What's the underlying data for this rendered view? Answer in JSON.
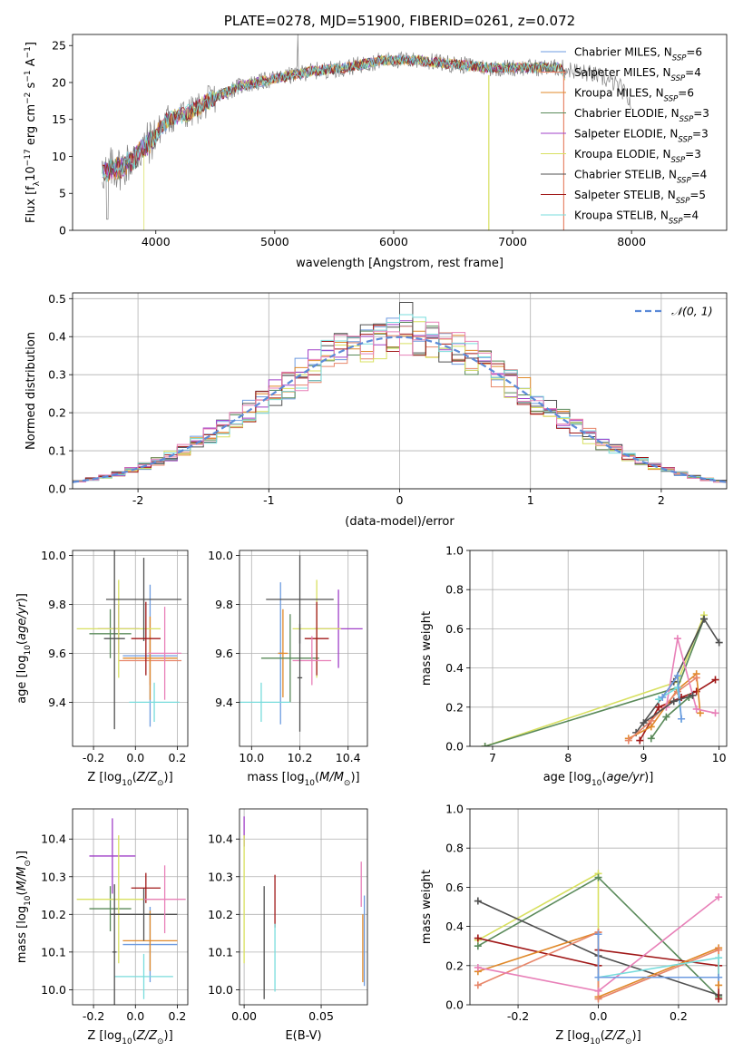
{
  "colors": {
    "chabrier_miles": "#6d9be0",
    "salpeter_miles": "#e8866a",
    "kroupa_miles": "#e0892a",
    "chabrier_elodie": "#5a8a5a",
    "salpeter_elodie": "#a040c8",
    "kroupa_elodie": "#d8e060",
    "chabrier_stelib": "#505050",
    "salpeter_stelib": "#a01818",
    "kroupa_stelib": "#78dcdc",
    "pink": "#e880b8",
    "gaussian": "#5b8ad8"
  },
  "chart_data": [
    {
      "id": "spectrum",
      "type": "line",
      "title": "PLATE=0278, MJD=51900, FIBERID=0261, z=0.072",
      "xlabel": "wavelength [Angstrom, rest frame]",
      "ylabel": "Flux [f_λ 10^-17 erg cm^-2 s^-1 A^-1]",
      "xlim": [
        3300,
        8800
      ],
      "ylim": [
        0,
        26.5
      ],
      "xticks": [
        4000,
        5000,
        6000,
        7000,
        8000
      ],
      "yticks": [
        0,
        5,
        10,
        15,
        20,
        25
      ],
      "grid": false,
      "legend_position": "upper-right",
      "legend": [
        {
          "label": "Chabrier MILES, N",
          "sub": "SSP",
          "tail": "=6",
          "color": "chabrier_miles"
        },
        {
          "label": "Salpeter MILES, N",
          "sub": "SSP",
          "tail": "=4",
          "color": "salpeter_miles"
        },
        {
          "label": "Kroupa MILES, N",
          "sub": "SSP",
          "tail": "=6",
          "color": "kroupa_miles"
        },
        {
          "label": "Chabrier ELODIE, N",
          "sub": "SSP",
          "tail": "=3",
          "color": "chabrier_elodie"
        },
        {
          "label": "Salpeter ELODIE, N",
          "sub": "SSP",
          "tail": "=3",
          "color": "salpeter_elodie"
        },
        {
          "label": "Kroupa ELODIE, N",
          "sub": "SSP",
          "tail": "=3",
          "color": "kroupa_elodie"
        },
        {
          "label": "Chabrier STELIB, N",
          "sub": "SSP",
          "tail": "=4",
          "color": "chabrier_stelib"
        },
        {
          "label": "Salpeter STELIB, N",
          "sub": "SSP",
          "tail": "=5",
          "color": "salpeter_stelib"
        },
        {
          "label": "Kroupa STELIB, N",
          "sub": "SSP",
          "tail": "=4",
          "color": "kroupa_stelib"
        }
      ],
      "data_anchors": [
        [
          3550,
          8
        ],
        [
          3700,
          8.5
        ],
        [
          3800,
          9.5
        ],
        [
          3950,
          12
        ],
        [
          4100,
          15
        ],
        [
          4300,
          16
        ],
        [
          4500,
          18
        ],
        [
          4700,
          19.5
        ],
        [
          5000,
          20.5
        ],
        [
          5300,
          21.5
        ],
        [
          5600,
          22
        ],
        [
          5900,
          23
        ],
        [
          6200,
          23
        ],
        [
          6500,
          22.5
        ],
        [
          6800,
          22
        ],
        [
          7100,
          22
        ],
        [
          7400,
          22
        ],
        [
          7700,
          21
        ],
        [
          7900,
          19.5
        ],
        [
          8000,
          17
        ]
      ],
      "model_anchors": [
        [
          3550,
          8
        ],
        [
          3700,
          8.5
        ],
        [
          3800,
          9.5
        ],
        [
          3950,
          12
        ],
        [
          4100,
          15
        ],
        [
          4300,
          16
        ],
        [
          4500,
          18
        ],
        [
          4700,
          19.5
        ],
        [
          5000,
          20.5
        ],
        [
          5300,
          21.5
        ],
        [
          5600,
          22
        ],
        [
          5900,
          23
        ],
        [
          6200,
          23
        ],
        [
          6500,
          22.5
        ],
        [
          6800,
          22
        ],
        [
          7100,
          22
        ],
        [
          7400,
          22
        ],
        [
          7440,
          21
        ]
      ],
      "model_xmin": [
        3550,
        3550,
        3550,
        3550,
        3550,
        3900,
        3550,
        3550,
        3550
      ]
    },
    {
      "id": "residuals",
      "type": "histogram",
      "xlabel": "(data-model)/error",
      "ylabel": "Normed distribution",
      "xlim": [
        -2.5,
        2.5
      ],
      "ylim": [
        0,
        0.515
      ],
      "xticks": [
        -2,
        -1,
        0,
        1,
        2
      ],
      "yticks": [
        0.0,
        0.1,
        0.2,
        0.3,
        0.4,
        0.5
      ],
      "grid": true,
      "legend_position": "upper-right",
      "legend_label": "𝒩(0, 1)",
      "bin_width": 0.1,
      "bin_start": -2.5,
      "series_colors": [
        "chabrier_miles",
        "salpeter_miles",
        "kroupa_miles",
        "chabrier_elodie",
        "salpeter_elodie",
        "kroupa_elodie",
        "chabrier_stelib",
        "salpeter_stelib",
        "kroupa_stelib",
        "pink"
      ]
    },
    {
      "id": "age_vs_Z",
      "type": "errorbar",
      "xlabel": "Z [log10(Z/Z⊙)]",
      "ylabel": "age  [log10(age/yr)]",
      "xlim": [
        -0.3,
        0.25
      ],
      "ylim": [
        9.22,
        10.02
      ],
      "xticks": [
        -0.2,
        0.0,
        0.2
      ],
      "yticks": [
        9.4,
        9.6,
        9.8,
        10.0
      ],
      "grid": true,
      "points": [
        {
          "x": 0.07,
          "y": 9.59,
          "xerr": 0.13,
          "yerr": 0.29,
          "color": "chabrier_miles"
        },
        {
          "x": 0.07,
          "y": 9.57,
          "xerr": 0.15,
          "yerr": 0.1,
          "color": "salpeter_miles"
        },
        {
          "x": 0.07,
          "y": 9.58,
          "xerr": 0.13,
          "yerr": 0.17,
          "color": "kroupa_miles"
        },
        {
          "x": -0.12,
          "y": 9.68,
          "xerr": 0.1,
          "yerr": 0.1,
          "color": "chabrier_elodie"
        },
        {
          "x": -0.08,
          "y": 9.7,
          "xerr": 0.1,
          "yerr": 0.1,
          "color": "salpeter_elodie"
        },
        {
          "x": -0.08,
          "y": 9.7,
          "xerr": 0.2,
          "yerr": 0.2,
          "color": "kroupa_elodie"
        },
        {
          "x": 0.04,
          "y": 9.82,
          "xerr": 0.18,
          "yerr": 0.17,
          "color": "chabrier_stelib"
        },
        {
          "x": 0.05,
          "y": 9.66,
          "xerr": 0.07,
          "yerr": 0.15,
          "color": "salpeter_stelib"
        },
        {
          "x": 0.09,
          "y": 9.4,
          "xerr": 0.12,
          "yerr": 0.08,
          "color": "kroupa_stelib"
        },
        {
          "x": 0.14,
          "y": 9.6,
          "xerr": 0.08,
          "yerr": 0.19,
          "color": "pink"
        },
        {
          "x": -0.1,
          "y": 9.66,
          "xerr": 0.05,
          "yerr": 0.37,
          "color": "chabrier_stelib"
        }
      ]
    },
    {
      "id": "age_vs_mass",
      "type": "errorbar",
      "xlabel": "mass [log10(M/M⊙)]",
      "ylabel": "",
      "xlim": [
        9.95,
        10.48
      ],
      "ylim": [
        9.22,
        10.02
      ],
      "xticks": [
        10.0,
        10.2,
        10.4
      ],
      "yticks": [
        9.4,
        9.6,
        9.8,
        10.0
      ],
      "grid": true,
      "points": [
        {
          "x": 10.12,
          "y": 9.6,
          "xerr": 0.01,
          "yerr": 0.29,
          "color": "chabrier_miles"
        },
        {
          "x": 10.13,
          "y": 9.6,
          "xerr": 0.02,
          "yerr": 0.18,
          "color": "kroupa_miles"
        },
        {
          "x": 10.16,
          "y": 9.58,
          "xerr": 0.12,
          "yerr": 0.18,
          "color": "chabrier_elodie"
        },
        {
          "x": 10.36,
          "y": 9.7,
          "xerr": 0.1,
          "yerr": 0.16,
          "color": "salpeter_elodie"
        },
        {
          "x": 10.27,
          "y": 9.7,
          "xerr": 0.1,
          "yerr": 0.2,
          "color": "kroupa_elodie"
        },
        {
          "x": 10.2,
          "y": 9.82,
          "xerr": 0.14,
          "yerr": 0.18,
          "color": "chabrier_stelib"
        },
        {
          "x": 10.27,
          "y": 9.66,
          "xerr": 0.05,
          "yerr": 0.15,
          "color": "salpeter_stelib"
        },
        {
          "x": 10.04,
          "y": 9.4,
          "xerr": 0.12,
          "yerr": 0.08,
          "color": "kroupa_stelib"
        },
        {
          "x": 10.25,
          "y": 9.57,
          "xerr": 0.08,
          "yerr": 0.1,
          "color": "pink"
        },
        {
          "x": 10.2,
          "y": 9.5,
          "xerr": 0.01,
          "yerr": 0.22,
          "color": "chabrier_stelib"
        }
      ]
    },
    {
      "id": "weight_vs_age",
      "type": "line",
      "xlabel": "age  [log10(age/yr)]",
      "ylabel": "mass weight",
      "xlim": [
        6.7,
        10.1
      ],
      "ylim": [
        0,
        1
      ],
      "xticks": [
        7,
        8,
        9,
        10
      ],
      "yticks": [
        0.0,
        0.2,
        0.4,
        0.6,
        0.8,
        1.0
      ],
      "grid": true,
      "series": [
        {
          "color": "kroupa_elodie",
          "x": [
            6.9,
            9.45,
            9.8
          ],
          "y": [
            0.0,
            0.33,
            0.67
          ]
        },
        {
          "color": "chabrier_elodie",
          "x": [
            6.9,
            9.45,
            9.8
          ],
          "y": [
            0.0,
            0.3,
            0.65
          ]
        },
        {
          "color": "chabrier_stelib",
          "x": [
            8.9,
            9.4,
            9.8,
            10.0
          ],
          "y": [
            0.07,
            0.33,
            0.65,
            0.53
          ]
        },
        {
          "color": "salpeter_stelib",
          "x": [
            8.95,
            9.2,
            9.5,
            9.7,
            9.95
          ],
          "y": [
            0.03,
            0.2,
            0.25,
            0.28,
            0.34
          ]
        },
        {
          "color": "kroupa_miles",
          "x": [
            8.8,
            9.1,
            9.45,
            9.7,
            9.75
          ],
          "y": [
            0.04,
            0.1,
            0.29,
            0.37,
            0.17
          ]
        },
        {
          "color": "salpeter_miles",
          "x": [
            8.8,
            9.1,
            9.45,
            9.7
          ],
          "y": [
            0.03,
            0.13,
            0.28,
            0.35
          ]
        },
        {
          "color": "pink",
          "x": [
            9.3,
            9.45,
            9.7,
            9.95
          ],
          "y": [
            0.2,
            0.55,
            0.19,
            0.17
          ]
        },
        {
          "color": "kroupa_stelib",
          "x": [
            9.2,
            9.45,
            9.5
          ],
          "y": [
            0.24,
            0.3,
            0.14
          ]
        },
        {
          "color": "chabrier_miles",
          "x": [
            9.25,
            9.45,
            9.5
          ],
          "y": [
            0.25,
            0.36,
            0.14
          ]
        },
        {
          "color": "chabrier_elodie",
          "x": [
            9.1,
            9.3,
            9.6
          ],
          "y": [
            0.04,
            0.15,
            0.25
          ]
        },
        {
          "color": "chabrier_stelib",
          "x": [
            9.0,
            9.4,
            9.65
          ],
          "y": [
            0.12,
            0.23,
            0.26
          ]
        }
      ]
    },
    {
      "id": "mass_vs_Z",
      "type": "errorbar",
      "xlabel": "Z [log10(Z/Z⊙)]",
      "ylabel": "mass [log10(M/M⊙)]",
      "xlim": [
        -0.3,
        0.25
      ],
      "ylim": [
        9.96,
        10.48
      ],
      "xticks": [
        -0.2,
        0.0,
        0.2
      ],
      "yticks": [
        10.0,
        10.1,
        10.2,
        10.3,
        10.4
      ],
      "grid": true,
      "points": [
        {
          "x": 0.07,
          "y": 10.12,
          "xerr": 0.13,
          "yerr": 0.1,
          "color": "chabrier_miles"
        },
        {
          "x": 0.07,
          "y": 10.13,
          "xerr": 0.13,
          "yerr": 0.08,
          "color": "kroupa_miles"
        },
        {
          "x": -0.12,
          "y": 10.215,
          "xerr": 0.1,
          "yerr": 0.06,
          "color": "chabrier_elodie"
        },
        {
          "x": -0.11,
          "y": 10.355,
          "xerr": 0.11,
          "yerr": 0.1,
          "color": "salpeter_elodie"
        },
        {
          "x": -0.08,
          "y": 10.24,
          "xerr": 0.2,
          "yerr": 0.17,
          "color": "kroupa_elodie"
        },
        {
          "x": 0.04,
          "y": 10.2,
          "xerr": 0.16,
          "yerr": 0.07,
          "color": "chabrier_stelib"
        },
        {
          "x": 0.05,
          "y": 10.27,
          "xerr": 0.07,
          "yerr": 0.04,
          "color": "salpeter_stelib"
        },
        {
          "x": 0.04,
          "y": 10.035,
          "xerr": 0.14,
          "yerr": 0.06,
          "color": "kroupa_stelib"
        },
        {
          "x": 0.14,
          "y": 10.24,
          "xerr": 0.1,
          "yerr": 0.09,
          "color": "pink"
        },
        {
          "x": -0.1,
          "y": 10.1,
          "xerr": 0.01,
          "yerr": 0.18,
          "color": "chabrier_stelib"
        }
      ]
    },
    {
      "id": "mass_vs_ebv",
      "type": "errorbar",
      "xlabel": "E(B-V)",
      "ylabel": "",
      "xlim": [
        -0.003,
        0.08
      ],
      "ylim": [
        9.96,
        10.48
      ],
      "xticks": [
        0.0,
        0.05
      ],
      "yticks": [
        10.0,
        10.1,
        10.2,
        10.3,
        10.4
      ],
      "grid": true,
      "points": [
        {
          "x": 0.0,
          "y": 10.42,
          "xerr": 0,
          "yerr": 0.04,
          "color": "salpeter_elodie"
        },
        {
          "x": 0.0,
          "y": 10.24,
          "xerr": 0,
          "yerr": 0.17,
          "color": "kroupa_elodie"
        },
        {
          "x": 0.013,
          "y": 10.125,
          "xerr": 0,
          "yerr": 0.15,
          "color": "chabrier_stelib"
        },
        {
          "x": 0.02,
          "y": 10.235,
          "xerr": 0,
          "yerr": 0.07,
          "color": "salpeter_stelib"
        },
        {
          "x": 0.02,
          "y": 10.085,
          "xerr": 0,
          "yerr": 0.09,
          "color": "kroupa_stelib"
        },
        {
          "x": 0.076,
          "y": 10.28,
          "xerr": 0,
          "yerr": 0.06,
          "color": "pink"
        },
        {
          "x": 0.077,
          "y": 10.11,
          "xerr": 0,
          "yerr": 0.09,
          "color": "kroupa_miles"
        },
        {
          "x": 0.078,
          "y": 10.13,
          "xerr": 0,
          "yerr": 0.12,
          "color": "chabrier_miles"
        }
      ]
    },
    {
      "id": "weight_vs_Z",
      "type": "line",
      "xlabel": "Z [log10(Z/Z⊙)]",
      "ylabel": "mass weight",
      "xlim": [
        -0.32,
        0.32
      ],
      "ylim": [
        0,
        1
      ],
      "xticks": [
        -0.2,
        0.0,
        0.2
      ],
      "yticks": [
        0.0,
        0.2,
        0.4,
        0.6,
        0.8,
        1.0
      ],
      "grid": true,
      "series": [
        {
          "color": "kroupa_elodie",
          "x": [
            -0.3,
            0.0,
            0.0
          ],
          "y": [
            0.33,
            0.67,
            0.04
          ]
        },
        {
          "color": "chabrier_elodie",
          "x": [
            -0.3,
            0.0,
            0.3
          ],
          "y": [
            0.3,
            0.65,
            0.04
          ]
        },
        {
          "color": "chabrier_stelib",
          "x": [
            -0.3,
            0.0,
            0.3
          ],
          "y": [
            0.53,
            0.25,
            0.05
          ]
        },
        {
          "color": "salpeter_stelib",
          "x": [
            -0.3,
            0.0,
            0.0,
            0.3,
            0.3
          ],
          "y": [
            0.34,
            0.2,
            0.28,
            0.2,
            0.03
          ]
        },
        {
          "color": "kroupa_miles",
          "x": [
            -0.3,
            0.0,
            0.0,
            0.3,
            0.3
          ],
          "y": [
            0.17,
            0.37,
            0.04,
            0.29,
            0.1
          ]
        },
        {
          "color": "salpeter_miles",
          "x": [
            -0.3,
            0.0,
            0.0,
            0.3
          ],
          "y": [
            0.1,
            0.37,
            0.03,
            0.28
          ]
        },
        {
          "color": "pink",
          "x": [
            -0.3,
            0.0,
            0.3
          ],
          "y": [
            0.19,
            0.07,
            0.55
          ]
        },
        {
          "color": "kroupa_stelib",
          "x": [
            0.0,
            0.3,
            0.3
          ],
          "y": [
            0.14,
            0.24,
            0.14
          ]
        },
        {
          "color": "chabrier_miles",
          "x": [
            0.0,
            0.0,
            0.3
          ],
          "y": [
            0.36,
            0.14,
            0.14
          ]
        }
      ]
    }
  ]
}
